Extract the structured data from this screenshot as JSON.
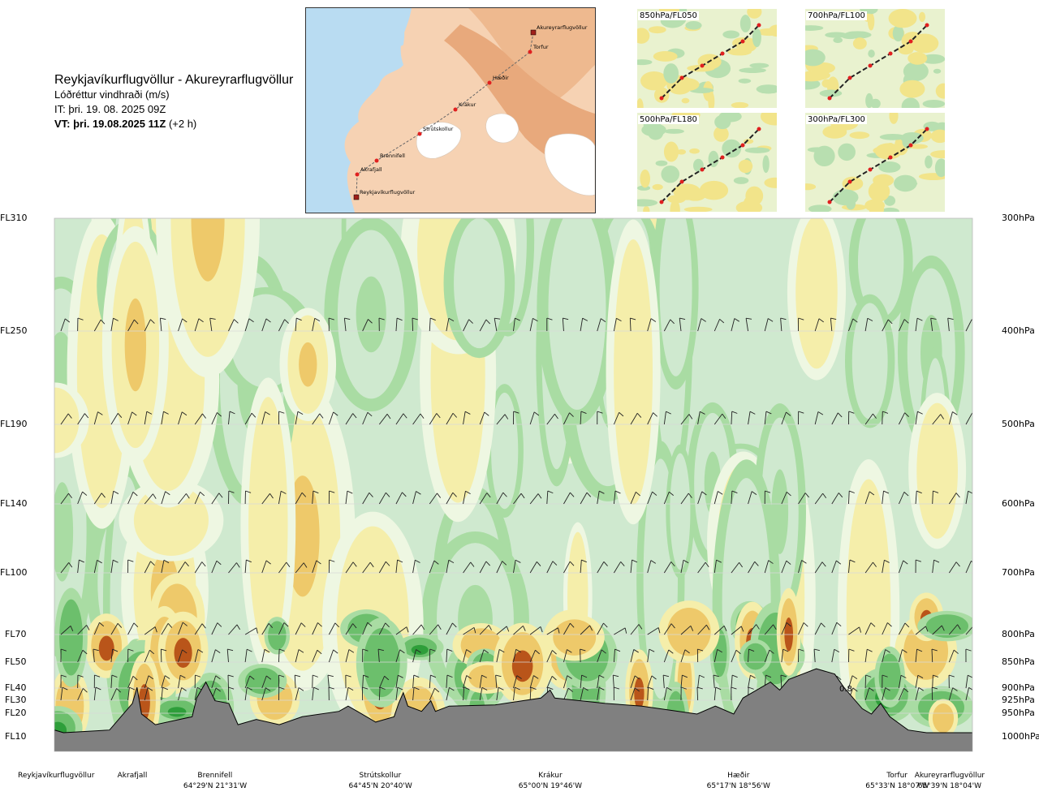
{
  "header": {
    "route": "Reykjavíkurflugvöllur - Akureyrarflugvöllur",
    "variable": "Lóðréttur vindhraði (m/s)",
    "issue_time": "IT: þri. 19. 08. 2025 09Z",
    "valid_time_bold": "VT: þri. 19.08.2025 11Z",
    "valid_offset": "(+2 h)"
  },
  "route_map": {
    "waypoints": [
      {
        "name": "Akureyrarflugvöllur"
      },
      {
        "name": "Torfur"
      },
      {
        "name": "Hæðir"
      },
      {
        "name": "Krákur"
      },
      {
        "name": "Strútskollur"
      },
      {
        "name": "Brennifell"
      },
      {
        "name": "Akrafjall"
      },
      {
        "name": "Reykjavíkurflugvöllur"
      }
    ],
    "colors": {
      "land": "#f6d2b3",
      "highland": "#e8a97c",
      "sea": "#b9dcf2",
      "glacier": "#ffffff",
      "route": "#666666",
      "point": "#e02020"
    }
  },
  "mini_maps": [
    {
      "label": "850hPa/FL050"
    },
    {
      "label": "700hPa/FL100"
    },
    {
      "label": "500hPa/FL180"
    },
    {
      "label": "300hPa/FL300"
    }
  ],
  "chart_data": {
    "type": "heatmap",
    "title": "Lóðréttur vindhraði (m/s)",
    "levels": [
      {
        "fl": "FL310",
        "hpa": "300hPa",
        "p": 300
      },
      {
        "fl": "FL250",
        "hpa": "400hPa",
        "p": 400
      },
      {
        "fl": "FL190",
        "hpa": "500hPa",
        "p": 500
      },
      {
        "fl": "FL140",
        "hpa": "600hPa",
        "p": 600
      },
      {
        "fl": "FL100",
        "hpa": "700hPa",
        "p": 700
      },
      {
        "fl": "FL70",
        "hpa": "800hPa",
        "p": 800
      },
      {
        "fl": "FL50",
        "hpa": "850hPa",
        "p": 850
      },
      {
        "fl": "FL40",
        "hpa": "900hPa",
        "p": 900
      },
      {
        "fl": "FL30",
        "hpa": "925hPa",
        "p": 925
      },
      {
        "fl": "FL20",
        "hpa": "950hPa",
        "p": 950
      },
      {
        "fl": "FL10",
        "hpa": "1000hPa",
        "p": 1000
      }
    ],
    "waypoints": [
      {
        "name": "Reykjavíkurflugvöllur",
        "coord": "",
        "d": 0.0
      },
      {
        "name": "Akrafjall",
        "coord": "",
        "d": 0.085
      },
      {
        "name": "Brennifell",
        "coord": "64°29'N 21°31'W",
        "d": 0.175
      },
      {
        "name": "Strútskollur",
        "coord": "64°45'N 20°40'W",
        "d": 0.355
      },
      {
        "name": "Krákur",
        "coord": "65°00'N 19°46'W",
        "d": 0.54
      },
      {
        "name": "Hæðir",
        "coord": "65°17'N 18°56'W",
        "d": 0.745
      },
      {
        "name": "Torfur",
        "coord": "65°33'N 18°07'W",
        "d": 0.918
      },
      {
        "name": "Akureyrarflugvöllur",
        "coord": "65°39'N 18°04'W",
        "d": 0.975
      }
    ],
    "color_scale": [
      "#2e9e3a",
      "#6cbf6c",
      "#a9dca3",
      "#cfe9cf",
      "#eef7e2",
      "#f5eeaa",
      "#eec96a",
      "#e39a3a",
      "#b9551a"
    ],
    "annotation": "0.8",
    "terrain_color": "#808080",
    "grid": true
  }
}
